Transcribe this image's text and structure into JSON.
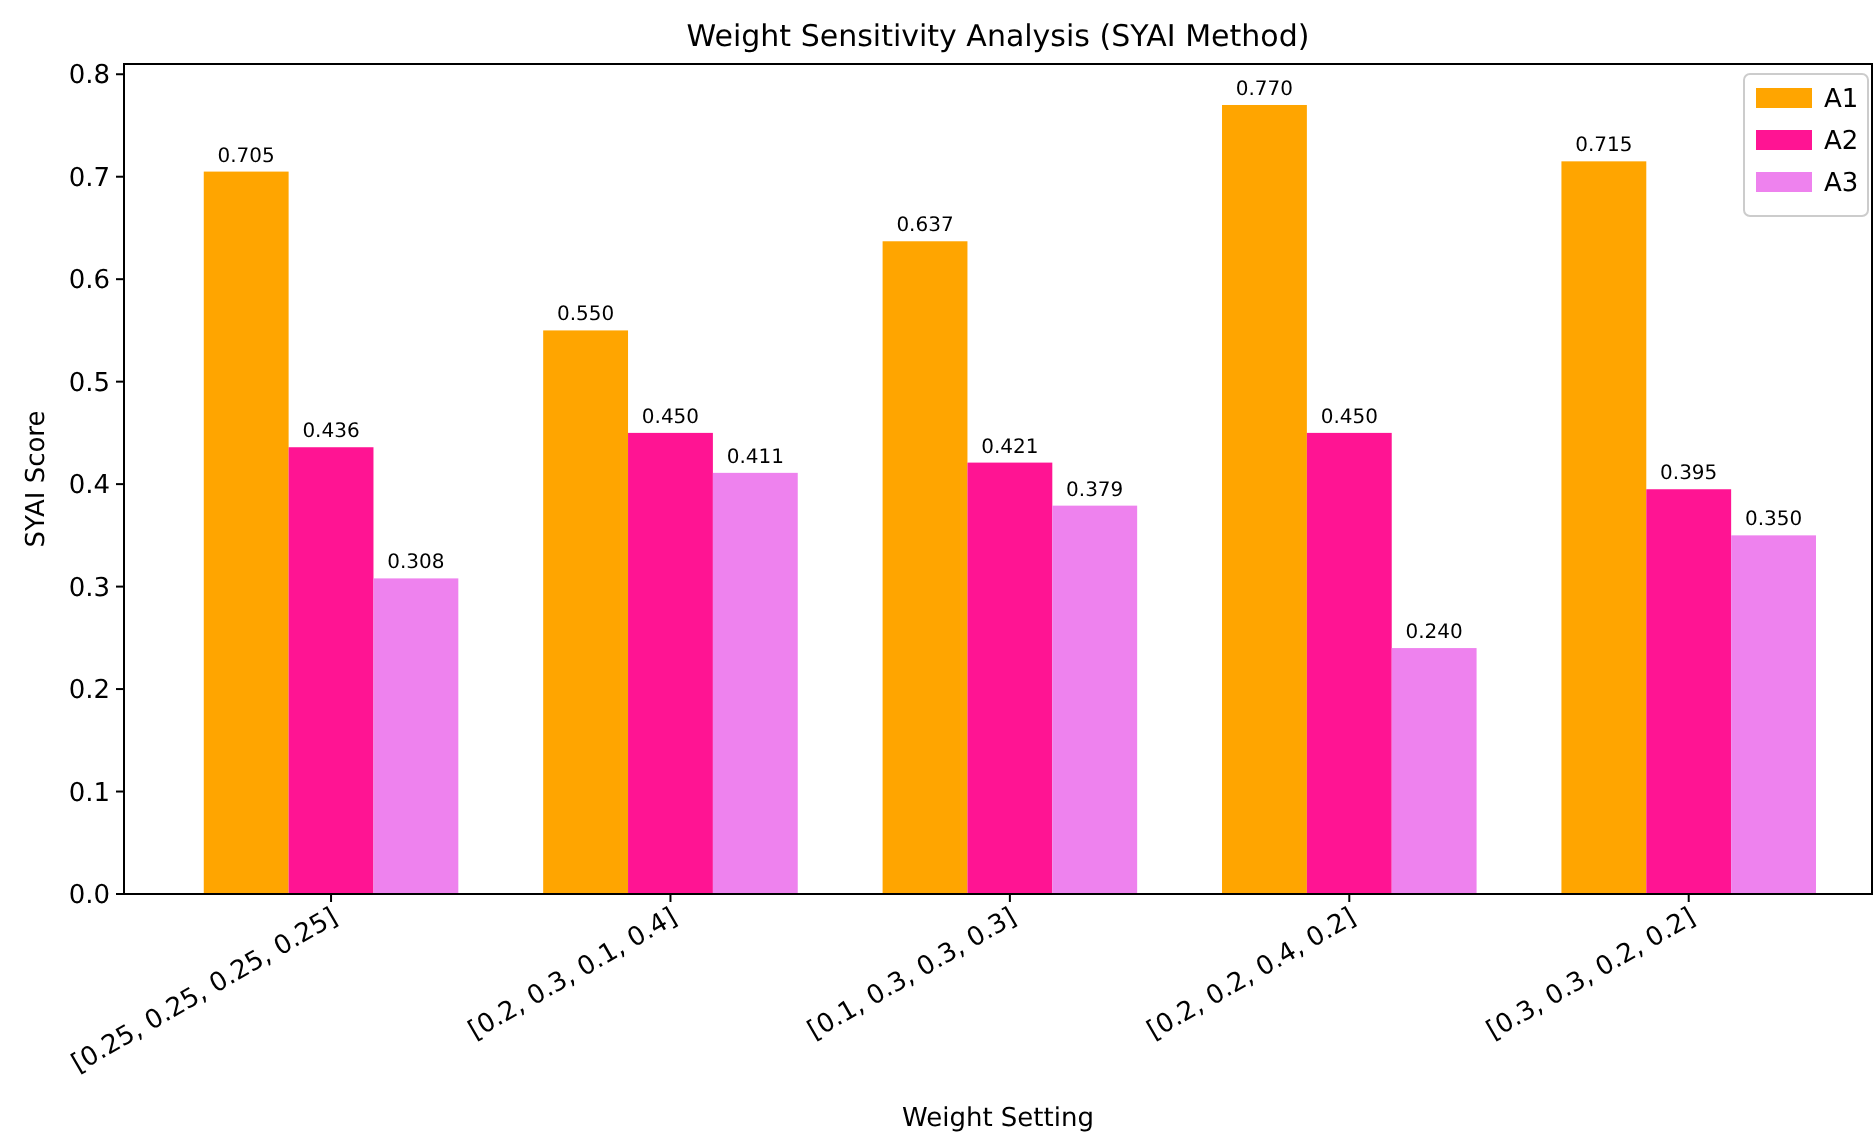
{
  "chart_data": {
    "type": "bar",
    "title": "Weight Sensitivity Analysis (SYAI Method)",
    "xlabel": "Weight Setting",
    "ylabel": "SYAI Score",
    "categories": [
      "[0.25, 0.25, 0.25, 0.25]",
      "[0.2, 0.3, 0.1, 0.4]",
      "[0.1, 0.3, 0.3, 0.3]",
      "[0.2, 0.2, 0.4, 0.2]",
      "[0.3, 0.3, 0.2, 0.2]"
    ],
    "series": [
      {
        "name": "A1",
        "color": "#ffa500",
        "values": [
          0.705,
          0.55,
          0.637,
          0.77,
          0.715
        ],
        "value_labels": [
          "0.705",
          "0.550",
          "0.637",
          "0.770",
          "0.715"
        ]
      },
      {
        "name": "A2",
        "color": "#ff1493",
        "values": [
          0.436,
          0.45,
          0.421,
          0.45,
          0.395
        ],
        "value_labels": [
          "0.436",
          "0.450",
          "0.421",
          "0.450",
          "0.395"
        ]
      },
      {
        "name": "A3",
        "color": "#ee82ee",
        "values": [
          0.308,
          0.411,
          0.379,
          0.24,
          0.35
        ],
        "value_labels": [
          "0.308",
          "0.411",
          "0.379",
          "0.240",
          "0.350"
        ]
      }
    ],
    "ylim": [
      0,
      0.81
    ],
    "yticks": [
      {
        "value": 0,
        "label": "0.0"
      },
      {
        "value": 0.1,
        "label": "0.1"
      },
      {
        "value": 0.2,
        "label": "0.2"
      },
      {
        "value": 0.3,
        "label": "0.3"
      },
      {
        "value": 0.4,
        "label": "0.4"
      },
      {
        "value": 0.5,
        "label": "0.5"
      },
      {
        "value": 0.6,
        "label": "0.6"
      },
      {
        "value": 0.7,
        "label": "0.7"
      },
      {
        "value": 0.8,
        "label": "0.8"
      }
    ],
    "legend": "top right",
    "grid": false
  }
}
